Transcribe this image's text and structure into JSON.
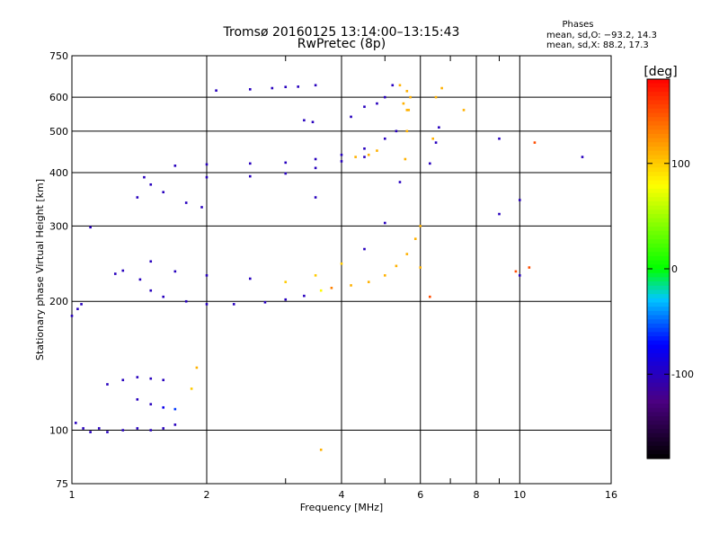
{
  "chart_data": {
    "type": "scatter",
    "title": "Tromsø 20160125 13:14:00–13:15:43",
    "subtitle": "RwPretec (8p)",
    "xlabel": "Frequency [MHz]",
    "ylabel": "Stationary phase Virtual Height [km]",
    "x_scale": "log",
    "y_scale": "log",
    "xlim": [
      1,
      16
    ],
    "ylim": [
      75,
      750
    ],
    "x_ticks": [
      1,
      2,
      4,
      6,
      8,
      10,
      16
    ],
    "y_ticks": [
      75,
      100,
      200,
      300,
      400,
      500,
      600,
      750
    ],
    "grid": true,
    "phase_stats": {
      "heading": "Phases",
      "line_o": "mean, sd,O: −93.2, 14.3",
      "line_x": "mean, sd,X: 88.2, 17.3"
    },
    "colorbar": {
      "label": "[deg]",
      "range": [
        -180,
        180
      ],
      "ticks": [
        100,
        0,
        -100
      ]
    },
    "series": [
      {
        "points": [
          [
            1.0,
            185,
            -100
          ],
          [
            1.03,
            192,
            -100
          ],
          [
            1.05,
            197,
            -100
          ],
          [
            1.02,
            104,
            -100
          ],
          [
            1.06,
            101,
            -100
          ],
          [
            1.1,
            99,
            -100
          ],
          [
            1.15,
            101,
            -100
          ],
          [
            1.2,
            99,
            -100
          ],
          [
            1.3,
            100,
            -100
          ],
          [
            1.4,
            101,
            -100
          ],
          [
            1.5,
            100,
            -100
          ],
          [
            1.6,
            101,
            -100
          ],
          [
            1.7,
            103,
            -100
          ],
          [
            1.2,
            128,
            -100
          ],
          [
            1.3,
            131,
            -100
          ],
          [
            1.4,
            133,
            -100
          ],
          [
            1.5,
            132,
            -100
          ],
          [
            1.6,
            131,
            -100
          ],
          [
            1.4,
            118,
            -100
          ],
          [
            1.5,
            115,
            -100
          ],
          [
            1.6,
            113,
            -80
          ],
          [
            1.7,
            112,
            -60
          ],
          [
            1.85,
            125,
            100
          ],
          [
            1.9,
            140,
            110
          ],
          [
            1.1,
            298,
            -100
          ],
          [
            1.25,
            232,
            -100
          ],
          [
            1.3,
            236,
            -100
          ],
          [
            1.42,
            225,
            -100
          ],
          [
            1.5,
            212,
            -100
          ],
          [
            1.6,
            205,
            -100
          ],
          [
            1.8,
            200,
            -100
          ],
          [
            2.0,
            197,
            -100
          ],
          [
            2.3,
            197,
            -100
          ],
          [
            2.7,
            199,
            -100
          ],
          [
            3.0,
            202,
            -100
          ],
          [
            3.3,
            206,
            -100
          ],
          [
            3.6,
            212,
            80
          ],
          [
            3.8,
            215,
            130
          ],
          [
            4.2,
            218,
            110
          ],
          [
            4.6,
            222,
            110
          ],
          [
            5.0,
            230,
            110
          ],
          [
            5.3,
            242,
            110
          ],
          [
            5.6,
            258,
            110
          ],
          [
            5.85,
            280,
            110
          ],
          [
            6.0,
            300,
            110
          ],
          [
            1.5,
            248,
            -100
          ],
          [
            1.7,
            235,
            -100
          ],
          [
            2.0,
            230,
            -100
          ],
          [
            2.5,
            226,
            -100
          ],
          [
            3.0,
            222,
            100
          ],
          [
            3.5,
            230,
            100
          ],
          [
            4.0,
            245,
            100
          ],
          [
            4.5,
            265,
            -100
          ],
          [
            5.0,
            305,
            -100
          ],
          [
            5.4,
            380,
            -100
          ],
          [
            5.55,
            430,
            110
          ],
          [
            5.6,
            500,
            110
          ],
          [
            5.6,
            560,
            110
          ],
          [
            1.4,
            350,
            -100
          ],
          [
            1.45,
            390,
            -100
          ],
          [
            1.5,
            375,
            -100
          ],
          [
            1.6,
            360,
            -100
          ],
          [
            1.8,
            340,
            -100
          ],
          [
            1.95,
            332,
            -100
          ],
          [
            1.7,
            415,
            -100
          ],
          [
            2.0,
            418,
            -100
          ],
          [
            2.5,
            420,
            -100
          ],
          [
            3.0,
            422,
            -100
          ],
          [
            3.5,
            430,
            -100
          ],
          [
            4.0,
            440,
            -100
          ],
          [
            4.5,
            455,
            -100
          ],
          [
            5.0,
            480,
            -100
          ],
          [
            5.3,
            500,
            -100
          ],
          [
            2.0,
            390,
            -100
          ],
          [
            2.5,
            392,
            -100
          ],
          [
            3.0,
            398,
            -100
          ],
          [
            3.5,
            410,
            -100
          ],
          [
            4.0,
            425,
            -100
          ],
          [
            4.5,
            435,
            -100
          ],
          [
            4.3,
            435,
            110
          ],
          [
            4.6,
            440,
            110
          ],
          [
            4.8,
            450,
            110
          ],
          [
            2.1,
            622,
            -100
          ],
          [
            2.5,
            626,
            -100
          ],
          [
            2.8,
            630,
            -100
          ],
          [
            3.0,
            634,
            -100
          ],
          [
            3.2,
            635,
            -100
          ],
          [
            3.5,
            640,
            -100
          ],
          [
            3.3,
            530,
            -100
          ],
          [
            3.45,
            525,
            -100
          ],
          [
            4.2,
            540,
            -100
          ],
          [
            4.5,
            570,
            -100
          ],
          [
            4.8,
            580,
            -100
          ],
          [
            5.0,
            600,
            -100
          ],
          [
            5.2,
            640,
            -100
          ],
          [
            5.4,
            640,
            110
          ],
          [
            5.6,
            620,
            110
          ],
          [
            5.7,
            600,
            110
          ],
          [
            5.5,
            580,
            110
          ],
          [
            5.65,
            560,
            110
          ],
          [
            6.5,
            600,
            110
          ],
          [
            6.7,
            630,
            110
          ],
          [
            6.3,
            420,
            -100
          ],
          [
            6.5,
            470,
            -100
          ],
          [
            6.6,
            510,
            -100
          ],
          [
            6.4,
            480,
            110
          ],
          [
            7.5,
            560,
            110
          ],
          [
            9.0,
            480,
            -100
          ],
          [
            9.0,
            320,
            -100
          ],
          [
            10.0,
            345,
            -100
          ],
          [
            10.8,
            470,
            150
          ],
          [
            13.8,
            435,
            -100
          ],
          [
            9.8,
            235,
            150
          ],
          [
            10.5,
            240,
            150
          ],
          [
            10.0,
            230,
            -100
          ],
          [
            6.3,
            205,
            150
          ],
          [
            6.0,
            240,
            110
          ],
          [
            3.6,
            90,
            110
          ],
          [
            3.5,
            350,
            -100
          ]
        ]
      }
    ]
  }
}
